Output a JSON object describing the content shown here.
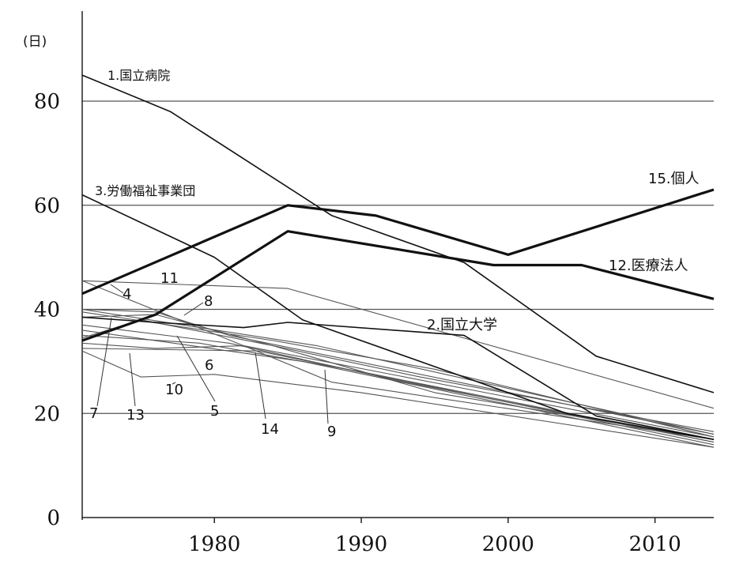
{
  "chart_data": {
    "type": "line",
    "ylabel": "(日)",
    "xlim": [
      1971,
      2014
    ],
    "ylim": [
      0,
      80
    ],
    "xticks": [
      1980,
      1990,
      2000,
      2010
    ],
    "yticks": [
      0,
      20,
      40,
      60,
      80
    ],
    "gridlines_y": [
      20,
      40,
      60,
      80
    ],
    "series": [
      {
        "name": "1.国立病院",
        "x": [
          1971,
          1977,
          1988,
          1997,
          2006,
          2014
        ],
        "y": [
          85,
          78,
          58,
          49,
          31,
          24
        ],
        "weight": "thin"
      },
      {
        "name": "2.国立大学",
        "x": [
          1971,
          1976,
          1982,
          1985,
          1997,
          2006,
          2014
        ],
        "y": [
          38.5,
          37.5,
          36.5,
          37.5,
          35,
          19.5,
          15
        ],
        "weight": "thin"
      },
      {
        "name": "3.労働福祉事業団",
        "x": [
          1971,
          1980,
          1986,
          1995,
          2004,
          2014
        ],
        "y": [
          62,
          50,
          38,
          29,
          20,
          15
        ],
        "weight": "thin"
      },
      {
        "name": "12.医療法人",
        "x": [
          1971,
          1976,
          1985,
          1999,
          2005,
          2014
        ],
        "y": [
          34,
          39,
          55,
          48.5,
          48.5,
          42
        ],
        "weight": "bold"
      },
      {
        "name": "15.個人",
        "x": [
          1971,
          1985,
          1991,
          2000,
          2014
        ],
        "y": [
          43,
          60,
          58,
          50.5,
          63
        ],
        "weight": "bold"
      }
    ],
    "unlabeled_series": [
      {
        "x": [
          1971,
          1985,
          2014
        ],
        "y": [
          45.5,
          44,
          21
        ],
        "weight": "thin"
      },
      {
        "x": [
          1971,
          1982,
          2014
        ],
        "y": [
          45.5,
          33,
          15.5
        ],
        "weight": "thin"
      },
      {
        "x": [
          1971,
          1976,
          1981,
          2014
        ],
        "y": [
          40,
          39.5,
          35,
          16
        ],
        "weight": "thin"
      },
      {
        "x": [
          1971,
          1976,
          1984,
          1995,
          2014
        ],
        "y": [
          38.5,
          39,
          33,
          24,
          15
        ],
        "weight": "thin"
      },
      {
        "x": [
          1971,
          1981,
          1993,
          2014
        ],
        "y": [
          37,
          33.5,
          26,
          14.5
        ],
        "weight": "thin"
      },
      {
        "x": [
          1971,
          1986,
          2014
        ],
        "y": [
          36,
          30,
          13.5
        ],
        "weight": "thin"
      },
      {
        "x": [
          1971,
          1975,
          1984,
          1994,
          2014
        ],
        "y": [
          34.5,
          38,
          33,
          27,
          16.5
        ],
        "weight": "thin"
      },
      {
        "x": [
          1971,
          1975,
          1980,
          1990,
          2014
        ],
        "y": [
          32,
          27,
          27.5,
          24,
          13.5
        ],
        "weight": "thin"
      },
      {
        "x": [
          1971,
          1983,
          2014
        ],
        "y": [
          32.5,
          32,
          14
        ],
        "weight": "thin"
      },
      {
        "x": [
          1971,
          1987,
          2014
        ],
        "y": [
          40,
          33,
          16
        ],
        "weight": "thin"
      },
      {
        "x": [
          1971,
          1979,
          1990,
          2014
        ],
        "y": [
          35,
          33.5,
          28,
          14.5
        ],
        "weight": "thin"
      },
      {
        "x": [
          1971,
          1976,
          1982,
          1988,
          2014
        ],
        "y": [
          33.5,
          32.5,
          33,
          26,
          15
        ],
        "weight": "thin"
      },
      {
        "x": [
          1971,
          1984,
          1995,
          2014
        ],
        "y": [
          39.5,
          34,
          28.5,
          15.5
        ],
        "weight": "thin"
      }
    ],
    "annotations": [
      {
        "text": "1.国立病院",
        "size": "small"
      },
      {
        "text": "2.国立大学",
        "size": "big"
      },
      {
        "text": "3.労働福祉事業団",
        "size": "small"
      },
      {
        "text": "12.医療法人",
        "size": "big"
      },
      {
        "text": "15.個人",
        "size": "big"
      },
      {
        "text": "4"
      },
      {
        "text": "5"
      },
      {
        "text": "6"
      },
      {
        "text": "7"
      },
      {
        "text": "8"
      },
      {
        "text": "9"
      },
      {
        "text": "10"
      },
      {
        "text": "11"
      },
      {
        "text": "13"
      },
      {
        "text": "14"
      }
    ]
  }
}
